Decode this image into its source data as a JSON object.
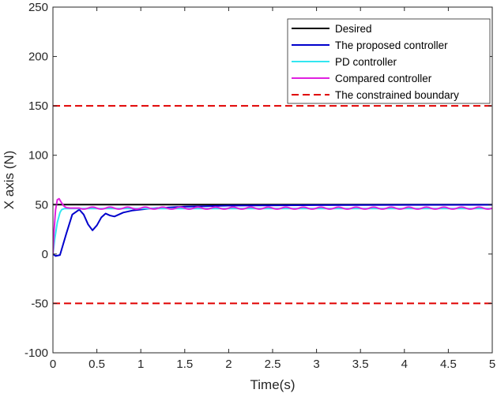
{
  "chart_data": {
    "type": "line",
    "xlabel": "Time(s)",
    "ylabel": "X axis (N)",
    "xlim": [
      0,
      5
    ],
    "ylim": [
      -100,
      250
    ],
    "xticks": [
      0,
      0.5,
      1,
      1.5,
      2,
      2.5,
      3,
      3.5,
      4,
      4.5,
      5
    ],
    "xtick_labels": [
      "0",
      "0.5",
      "1",
      "1.5",
      "2",
      "2.5",
      "3",
      "3.5",
      "4",
      "4.5",
      "5"
    ],
    "yticks": [
      -100,
      -50,
      0,
      50,
      100,
      150,
      200,
      250
    ],
    "ytick_labels": [
      "-100",
      "-50",
      "0",
      "50",
      "100",
      "150",
      "200",
      "250"
    ],
    "grid": false,
    "legend_position": "top-right",
    "series": [
      {
        "name": "Desired",
        "color": "#000000",
        "style": "solid",
        "x": [
          0,
          0.02,
          5
        ],
        "y": [
          50,
          50,
          50
        ]
      },
      {
        "name": "The proposed controller",
        "color": "#0000cc",
        "style": "solid",
        "x": [
          0,
          0.03,
          0.08,
          0.15,
          0.22,
          0.3,
          0.35,
          0.4,
          0.45,
          0.5,
          0.55,
          0.6,
          0.65,
          0.7,
          0.75,
          0.8,
          0.9,
          1.0,
          1.1,
          1.3,
          1.5,
          2.0,
          3.0,
          4.0,
          5.0
        ],
        "y": [
          0,
          -2,
          -1,
          20,
          40,
          45,
          40,
          30,
          24,
          29,
          37,
          41,
          39,
          38,
          40,
          42,
          44,
          45,
          46,
          47,
          48,
          49,
          49.5,
          49.7,
          49.8
        ]
      },
      {
        "name": "PD controller",
        "color": "#33e6f0",
        "style": "solid",
        "x": [
          0,
          0.02,
          0.05,
          0.08,
          0.1,
          0.13,
          0.18,
          0.25,
          0.35,
          0.5,
          0.8,
          1.0,
          1.5,
          2.0,
          2.5,
          3.0,
          3.5,
          4.0,
          4.5,
          5.0
        ],
        "y": [
          0,
          15,
          32,
          42,
          45,
          46,
          46,
          46,
          46,
          46,
          46,
          46,
          46,
          46,
          46,
          46,
          46,
          46,
          46,
          46
        ]
      },
      {
        "name": "Compared controller",
        "color": "#e020e0",
        "style": "solid",
        "x": [
          0,
          0.01,
          0.03,
          0.05,
          0.07,
          0.09,
          0.12,
          0.15,
          0.2,
          0.3,
          0.5,
          0.8,
          1.0,
          1.5,
          2.0,
          2.5,
          3.0,
          3.5,
          4.0,
          4.5,
          5.0
        ],
        "y": [
          0,
          20,
          45,
          55,
          56,
          53,
          49,
          47,
          46.5,
          46.5,
          46.5,
          46.5,
          46.5,
          46.5,
          46.5,
          46.5,
          46.5,
          46.5,
          46.5,
          46.5,
          46.5
        ],
        "oscillation": {
          "amplitude": 1.0,
          "period": 0.2
        }
      },
      {
        "name": "The constrained boundary",
        "color": "#e00000",
        "style": "dashed",
        "x": [
          0,
          5
        ],
        "y": [
          150,
          150
        ]
      },
      {
        "name": "The constrained boundary (lower)",
        "legend": false,
        "color": "#e00000",
        "style": "dashed",
        "x": [
          0,
          5
        ],
        "y": [
          -50,
          -50
        ]
      }
    ]
  }
}
